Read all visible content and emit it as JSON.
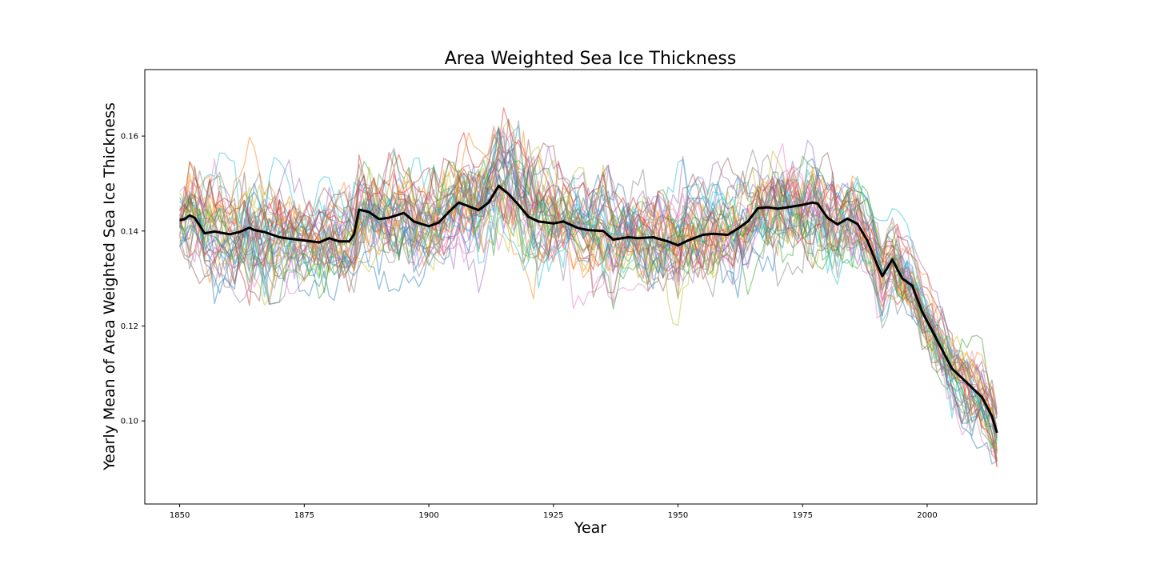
{
  "chart_data": {
    "type": "line",
    "title": "Area Weighted Sea Ice Thickness",
    "xlabel": "Year",
    "ylabel": "Yearly Mean of Area Weighted Sea Ice Thickness",
    "xlim": [
      1843,
      2022
    ],
    "ylim": [
      0.0825,
      0.174
    ],
    "xticks": [
      1850,
      1875,
      1900,
      1925,
      1950,
      1975,
      2000
    ],
    "yticks": [
      0.1,
      0.12,
      0.14,
      0.16
    ],
    "ytick_labels": [
      "0.10",
      "0.12",
      "0.14",
      "0.16"
    ],
    "grid": false,
    "legend": "none",
    "ensemble": {
      "member_count": 40,
      "style": "thin semi-transparent lines, matplotlib tab10 cycle",
      "colors": [
        "#1f77b4",
        "#ff7f0e",
        "#2ca02c",
        "#d62728",
        "#9467bd",
        "#8c564b",
        "#e377c2",
        "#7f7f7f",
        "#bcbd22",
        "#17becf"
      ],
      "envelope": {
        "x": [
          1850,
          1855,
          1860,
          1865,
          1870,
          1875,
          1880,
          1885,
          1890,
          1895,
          1900,
          1905,
          1910,
          1915,
          1920,
          1925,
          1930,
          1935,
          1940,
          1945,
          1950,
          1955,
          1960,
          1965,
          1970,
          1975,
          1980,
          1985,
          1990,
          1995,
          2000,
          2005,
          2010,
          2014
        ],
        "lower": [
          0.126,
          0.124,
          0.122,
          0.124,
          0.125,
          0.126,
          0.125,
          0.127,
          0.126,
          0.127,
          0.129,
          0.132,
          0.127,
          0.124,
          0.124,
          0.122,
          0.124,
          0.122,
          0.123,
          0.122,
          0.118,
          0.12,
          0.125,
          0.127,
          0.127,
          0.129,
          0.13,
          0.127,
          0.12,
          0.114,
          0.11,
          0.097,
          0.09,
          0.087
        ],
        "upper": [
          0.157,
          0.162,
          0.155,
          0.167,
          0.163,
          0.157,
          0.158,
          0.162,
          0.159,
          0.161,
          0.16,
          0.163,
          0.164,
          0.168,
          0.168,
          0.158,
          0.158,
          0.157,
          0.157,
          0.157,
          0.158,
          0.155,
          0.156,
          0.158,
          0.165,
          0.165,
          0.165,
          0.157,
          0.146,
          0.144,
          0.131,
          0.124,
          0.118,
          0.115
        ]
      }
    },
    "series": [
      {
        "style": "thick black line (ensemble mean)",
        "color": "#000000",
        "x": [
          1850,
          1851,
          1852,
          1853,
          1854,
          1855,
          1857,
          1860,
          1862,
          1864,
          1865,
          1867,
          1870,
          1872,
          1875,
          1878,
          1880,
          1882,
          1884,
          1885,
          1886,
          1888,
          1890,
          1892,
          1895,
          1897,
          1900,
          1902,
          1904,
          1906,
          1908,
          1910,
          1912,
          1914,
          1916,
          1918,
          1920,
          1922,
          1925,
          1927,
          1930,
          1932,
          1935,
          1937,
          1940,
          1942,
          1945,
          1948,
          1950,
          1952,
          1955,
          1957,
          1960,
          1962,
          1964,
          1966,
          1968,
          1970,
          1972,
          1975,
          1977,
          1978,
          1980,
          1982,
          1984,
          1986,
          1988,
          1990,
          1991,
          1993,
          1995,
          1997,
          1999,
          2001,
          2003,
          2005,
          2007,
          2009,
          2011,
          2013,
          2014
        ],
        "y": [
          0.1423,
          0.1425,
          0.1433,
          0.1428,
          0.1412,
          0.1395,
          0.1399,
          0.1393,
          0.1398,
          0.1407,
          0.1402,
          0.1398,
          0.1387,
          0.1384,
          0.138,
          0.1376,
          0.1385,
          0.1378,
          0.1378,
          0.1393,
          0.1445,
          0.144,
          0.1425,
          0.1428,
          0.1438,
          0.142,
          0.141,
          0.1418,
          0.144,
          0.146,
          0.1452,
          0.1444,
          0.146,
          0.1495,
          0.1478,
          0.1455,
          0.143,
          0.142,
          0.1416,
          0.142,
          0.1406,
          0.1402,
          0.14,
          0.1382,
          0.1387,
          0.1385,
          0.1387,
          0.1378,
          0.137,
          0.138,
          0.1392,
          0.1394,
          0.1392,
          0.1405,
          0.142,
          0.1448,
          0.145,
          0.1447,
          0.145,
          0.1455,
          0.146,
          0.1458,
          0.1428,
          0.1414,
          0.1426,
          0.1415,
          0.138,
          0.1328,
          0.1305,
          0.134,
          0.13,
          0.1285,
          0.123,
          0.119,
          0.115,
          0.111,
          0.109,
          0.107,
          0.105,
          0.101,
          0.0975
        ]
      }
    ]
  }
}
